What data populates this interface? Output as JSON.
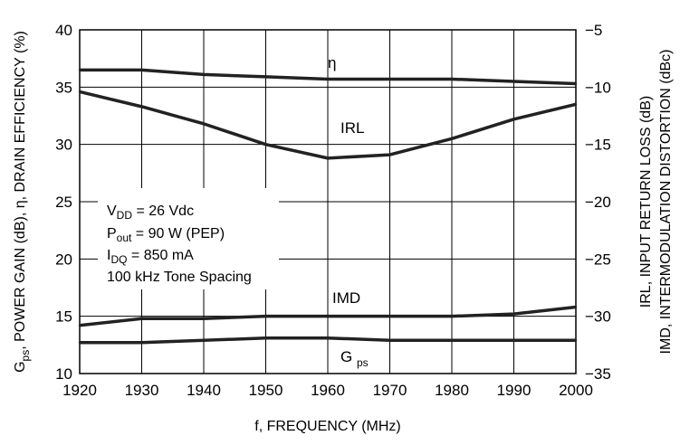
{
  "chart_data": {
    "type": "line",
    "x": [
      1920,
      1930,
      1940,
      1950,
      1960,
      1970,
      1980,
      1990,
      2000
    ],
    "xlim": [
      1920,
      2000
    ],
    "x_ticks": [
      "1920",
      "1930",
      "1940",
      "1950",
      "1960",
      "1970",
      "1980",
      "1990",
      "2000"
    ],
    "xlabel": "f, FREQUENCY (MHz)",
    "ylabel_left": "Gps, POWER GAIN (dB), η, DRAIN EFFICIENCY (%)",
    "ylabel_right_1": "IRL, INPUT RETURN LOSS (dB)",
    "ylabel_right_2": "IMD, INTERMODULATION DISTORTION (dBc)",
    "ylim_left": [
      10,
      40
    ],
    "ylim_right": [
      -35,
      -5
    ],
    "left_ticks": [
      "10",
      "15",
      "20",
      "25",
      "30",
      "35",
      "40"
    ],
    "right_ticks": [
      "−35",
      "−30",
      "−25",
      "−20",
      "−15",
      "−10",
      "−5"
    ],
    "grid": true,
    "line_color": "#222222",
    "series": [
      {
        "name": "η",
        "axis": "left",
        "values": [
          36.5,
          36.5,
          36.1,
          35.9,
          35.7,
          35.7,
          35.7,
          35.5,
          35.3
        ]
      },
      {
        "name": "IRL",
        "axis": "right",
        "values": [
          -10.4,
          -11.7,
          -13.2,
          -15.0,
          -16.2,
          -15.9,
          -14.5,
          -12.8,
          -11.5
        ]
      },
      {
        "name": "IMD",
        "axis": "right",
        "values": [
          -30.8,
          -30.2,
          -30.2,
          -30.0,
          -30.0,
          -30.0,
          -30.0,
          -29.8,
          -29.2
        ]
      },
      {
        "name": "Gps",
        "axis": "left",
        "values": [
          12.7,
          12.7,
          12.9,
          13.1,
          13.1,
          12.9,
          12.9,
          12.9,
          12.9
        ]
      }
    ],
    "annotations": {
      "cond1_main": "V",
      "cond1_sub": "DD",
      "cond1_rest": " = 26 Vdc",
      "cond2_main": "P",
      "cond2_sub": "out",
      "cond2_rest": " = 90 W (PEP)",
      "cond3_main": "I",
      "cond3_sub": "DQ",
      "cond3_rest": " = 850 mA",
      "cond4": "100 kHz Tone Spacing"
    }
  }
}
